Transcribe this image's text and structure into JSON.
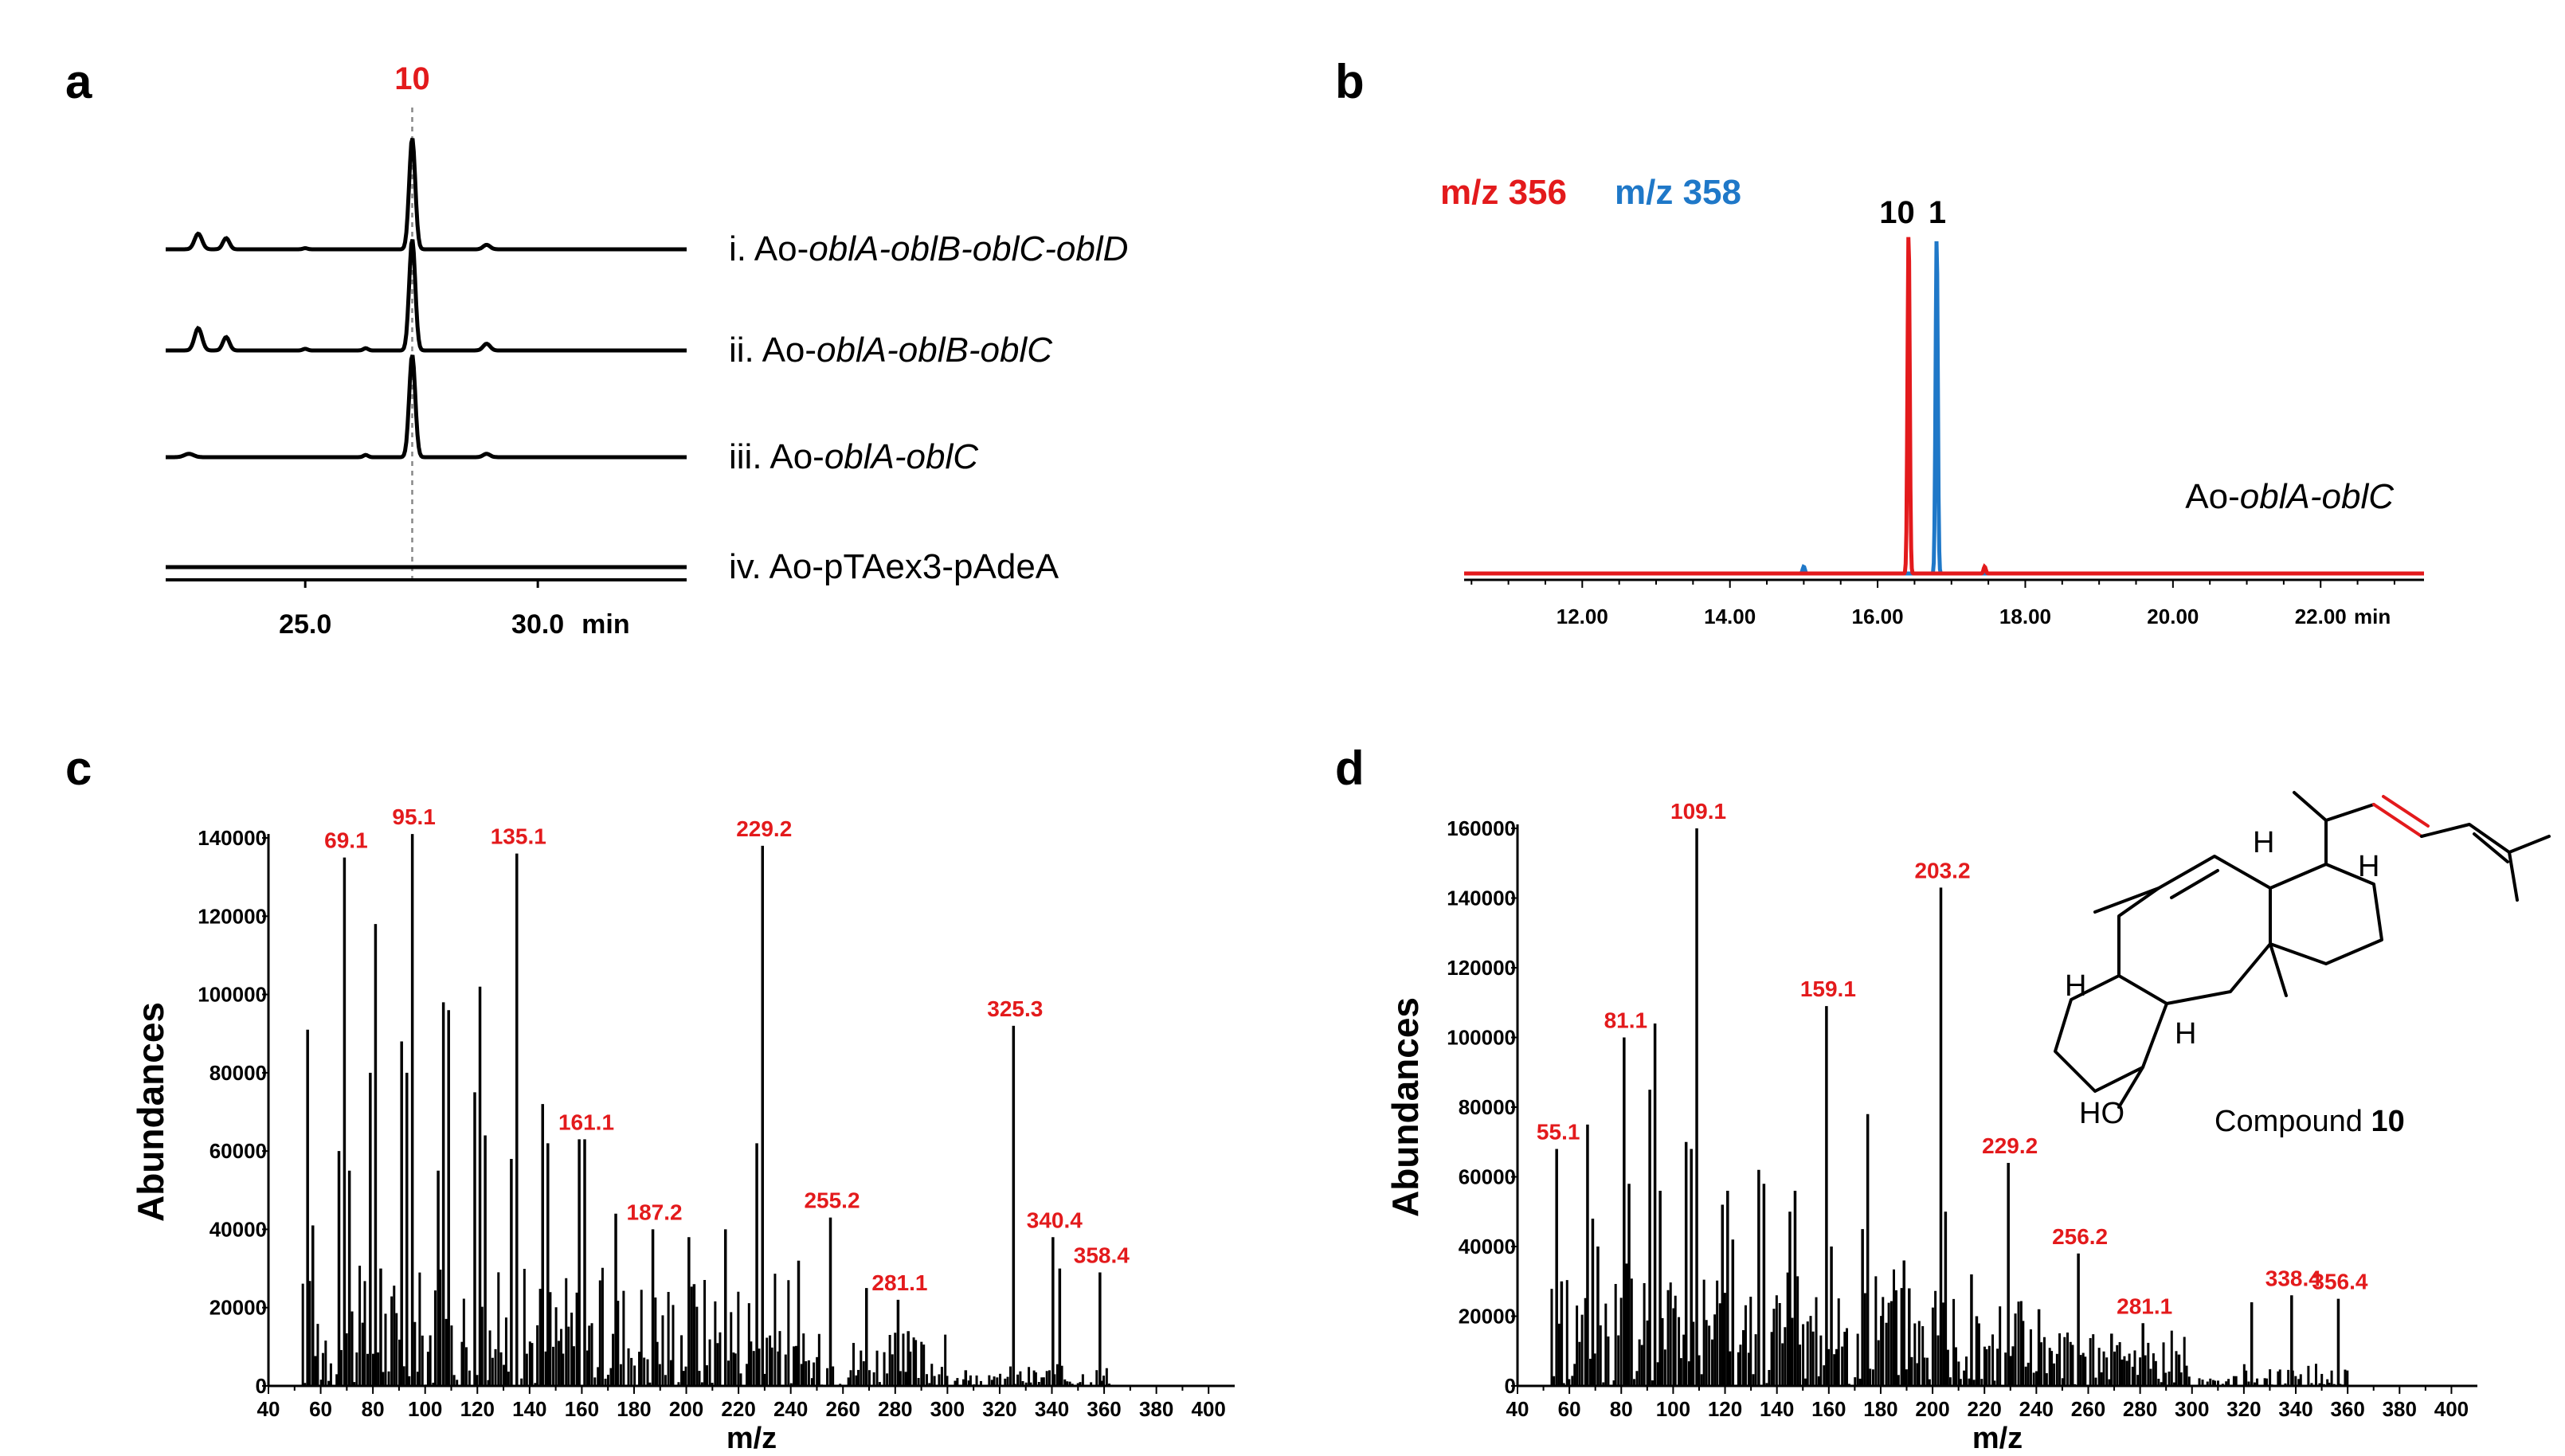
{
  "panels": {
    "a": "a",
    "b": "b",
    "c": "c",
    "d": "d"
  },
  "colors": {
    "red": "#e31a1c",
    "blue": "#1f78c8",
    "black": "#000000"
  },
  "chart_data": [
    {
      "id": "a",
      "type": "line",
      "title": "",
      "xlabel": "min",
      "xlim": [
        22.0,
        33.2
      ],
      "x_ticks": [
        {
          "value": 25.0,
          "label": "25.0"
        },
        {
          "value": 30.0,
          "label": "30.0"
        }
      ],
      "peak_marker": {
        "x": 27.3,
        "label": "10"
      },
      "traces": [
        {
          "name": "i",
          "label_prefix": "i. Ao-",
          "label_genes": "oblA-oblB-oblC-oblD",
          "peaks": [
            {
              "x": 27.3,
              "h": 1.0,
              "w": 0.13
            },
            {
              "x": 22.7,
              "h": 0.14,
              "w": 0.16
            },
            {
              "x": 23.3,
              "h": 0.1,
              "w": 0.14
            },
            {
              "x": 28.9,
              "h": 0.04,
              "w": 0.15
            },
            {
              "x": 25.0,
              "h": 0.01,
              "w": 0.1
            }
          ]
        },
        {
          "name": "ii",
          "label_prefix": "ii. Ao-",
          "label_genes": "oblA-oblB-oblC",
          "peaks": [
            {
              "x": 27.3,
              "h": 1.0,
              "w": 0.13
            },
            {
              "x": 22.7,
              "h": 0.2,
              "w": 0.16
            },
            {
              "x": 23.3,
              "h": 0.12,
              "w": 0.14
            },
            {
              "x": 28.9,
              "h": 0.06,
              "w": 0.15
            },
            {
              "x": 25.0,
              "h": 0.015,
              "w": 0.1
            },
            {
              "x": 26.3,
              "h": 0.02,
              "w": 0.1
            }
          ]
        },
        {
          "name": "iii",
          "label_prefix": "iii. Ao-",
          "label_genes": "oblA-oblC",
          "peaks": [
            {
              "x": 27.3,
              "h": 0.92,
              "w": 0.13
            },
            {
              "x": 22.5,
              "h": 0.03,
              "w": 0.2
            },
            {
              "x": 26.3,
              "h": 0.02,
              "w": 0.1
            },
            {
              "x": 28.9,
              "h": 0.03,
              "w": 0.15
            }
          ]
        },
        {
          "name": "iv",
          "label_prefix": "iv. Ao-pTAex3-pAdeA",
          "label_genes": "",
          "peaks": []
        }
      ]
    },
    {
      "id": "b",
      "type": "line",
      "title": "",
      "xlabel": "min",
      "xlim": [
        10.4,
        23.4
      ],
      "x_ticks": [
        {
          "value": 12.0,
          "label": "12.00"
        },
        {
          "value": 14.0,
          "label": "14.00"
        },
        {
          "value": 16.0,
          "label": "16.00"
        },
        {
          "value": 18.0,
          "label": "18.00"
        },
        {
          "value": 20.0,
          "label": "20.00"
        },
        {
          "value": 22.0,
          "label": "22.00"
        }
      ],
      "legend": [
        {
          "name": "m/z 356",
          "color": "#e31a1c"
        },
        {
          "name": "m/z 358",
          "color": "#1f78c8"
        }
      ],
      "peak_labels": [
        {
          "x": 16.45,
          "label": "10"
        },
        {
          "x": 16.85,
          "label": "1"
        }
      ],
      "sample_label_prefix": "Ao-",
      "sample_label_genes": "oblA-oblC",
      "series": [
        {
          "name": "m/z 356",
          "color": "#e31a1c",
          "peaks": [
            {
              "x": 16.42,
              "h": 1.0,
              "w": 0.03
            },
            {
              "x": 17.45,
              "h": 0.02,
              "w": 0.03
            }
          ]
        },
        {
          "name": "m/z 358",
          "color": "#1f78c8",
          "peaks": [
            {
              "x": 16.8,
              "h": 0.98,
              "w": 0.03
            },
            {
              "x": 15.0,
              "h": 0.02,
              "w": 0.03
            }
          ]
        }
      ]
    },
    {
      "id": "c",
      "type": "bar",
      "title": "",
      "xlabel": "m/z",
      "ylabel": "Abundances",
      "xlim": [
        40,
        410
      ],
      "ylim": [
        0,
        140000
      ],
      "x_ticks": [
        40,
        60,
        80,
        100,
        120,
        140,
        160,
        180,
        200,
        220,
        240,
        260,
        280,
        300,
        320,
        340,
        360,
        380,
        400
      ],
      "y_ticks": [
        0,
        20000,
        40000,
        60000,
        80000,
        100000,
        120000,
        140000
      ],
      "major_peaks": [
        {
          "mz": 55,
          "ab": 91000
        },
        {
          "mz": 57,
          "ab": 41000
        },
        {
          "mz": 67,
          "ab": 60000
        },
        {
          "mz": 69.1,
          "ab": 135000,
          "label": "69.1"
        },
        {
          "mz": 71,
          "ab": 55000
        },
        {
          "mz": 79,
          "ab": 80000
        },
        {
          "mz": 81,
          "ab": 118000
        },
        {
          "mz": 83,
          "ab": 30000
        },
        {
          "mz": 91,
          "ab": 88000
        },
        {
          "mz": 93,
          "ab": 80000
        },
        {
          "mz": 95.1,
          "ab": 141000,
          "label": "95.1"
        },
        {
          "mz": 105,
          "ab": 55000
        },
        {
          "mz": 107,
          "ab": 98000
        },
        {
          "mz": 109,
          "ab": 96000
        },
        {
          "mz": 119,
          "ab": 75000
        },
        {
          "mz": 121,
          "ab": 102000
        },
        {
          "mz": 123,
          "ab": 64000
        },
        {
          "mz": 133,
          "ab": 58000
        },
        {
          "mz": 135.1,
          "ab": 136000,
          "label": "135.1"
        },
        {
          "mz": 145,
          "ab": 72000
        },
        {
          "mz": 147,
          "ab": 62000
        },
        {
          "mz": 159,
          "ab": 63000
        },
        {
          "mz": 161.1,
          "ab": 63000,
          "label": "161.1"
        },
        {
          "mz": 173,
          "ab": 44000
        },
        {
          "mz": 187.2,
          "ab": 40000,
          "label": "187.2"
        },
        {
          "mz": 201,
          "ab": 38000
        },
        {
          "mz": 203,
          "ab": 26000
        },
        {
          "mz": 215,
          "ab": 40000
        },
        {
          "mz": 229.2,
          "ab": 138000,
          "label": "229.2"
        },
        {
          "mz": 227,
          "ab": 62000
        },
        {
          "mz": 243,
          "ab": 32000
        },
        {
          "mz": 255.2,
          "ab": 43000,
          "label": "255.2"
        },
        {
          "mz": 269,
          "ab": 25000
        },
        {
          "mz": 281.1,
          "ab": 22000,
          "label": "281.1"
        },
        {
          "mz": 285,
          "ab": 14000
        },
        {
          "mz": 307,
          "ab": 4000
        },
        {
          "mz": 325.3,
          "ab": 92000,
          "label": "325.3"
        },
        {
          "mz": 340.4,
          "ab": 38000,
          "label": "340.4"
        },
        {
          "mz": 343,
          "ab": 30000
        },
        {
          "mz": 358.4,
          "ab": 29000,
          "label": "358.4"
        }
      ]
    },
    {
      "id": "d",
      "type": "bar",
      "title": "",
      "xlabel": "m/z",
      "ylabel": "Abundances",
      "xlim": [
        40,
        410
      ],
      "ylim": [
        0,
        160000
      ],
      "x_ticks": [
        40,
        60,
        80,
        100,
        120,
        140,
        160,
        180,
        200,
        220,
        240,
        260,
        280,
        300,
        320,
        340,
        360,
        380,
        400
      ],
      "y_ticks": [
        0,
        20000,
        40000,
        60000,
        80000,
        100000,
        120000,
        140000,
        160000
      ],
      "major_peaks": [
        {
          "mz": 55.1,
          "ab": 68000,
          "label": "55.1"
        },
        {
          "mz": 57,
          "ab": 30000
        },
        {
          "mz": 67,
          "ab": 75000
        },
        {
          "mz": 69,
          "ab": 48000
        },
        {
          "mz": 71,
          "ab": 40000
        },
        {
          "mz": 81.1,
          "ab": 100000,
          "label": "81.1"
        },
        {
          "mz": 83,
          "ab": 58000
        },
        {
          "mz": 91,
          "ab": 85000
        },
        {
          "mz": 93,
          "ab": 104000
        },
        {
          "mz": 95,
          "ab": 56000
        },
        {
          "mz": 105,
          "ab": 70000
        },
        {
          "mz": 107,
          "ab": 68000
        },
        {
          "mz": 109.1,
          "ab": 160000,
          "label": "109.1"
        },
        {
          "mz": 119,
          "ab": 52000
        },
        {
          "mz": 121,
          "ab": 56000
        },
        {
          "mz": 123,
          "ab": 42000
        },
        {
          "mz": 133,
          "ab": 62000
        },
        {
          "mz": 135,
          "ab": 58000
        },
        {
          "mz": 145,
          "ab": 50000
        },
        {
          "mz": 147,
          "ab": 56000
        },
        {
          "mz": 159.1,
          "ab": 109000,
          "label": "159.1"
        },
        {
          "mz": 161,
          "ab": 40000
        },
        {
          "mz": 173,
          "ab": 45000
        },
        {
          "mz": 175,
          "ab": 78000
        },
        {
          "mz": 189,
          "ab": 36000
        },
        {
          "mz": 191,
          "ab": 28000
        },
        {
          "mz": 203.2,
          "ab": 143000,
          "label": "203.2"
        },
        {
          "mz": 205,
          "ab": 50000
        },
        {
          "mz": 215,
          "ab": 32000
        },
        {
          "mz": 217,
          "ab": 20000
        },
        {
          "mz": 229.2,
          "ab": 64000,
          "label": "229.2"
        },
        {
          "mz": 241,
          "ab": 22000
        },
        {
          "mz": 256.2,
          "ab": 38000,
          "label": "256.2"
        },
        {
          "mz": 269,
          "ab": 15000
        },
        {
          "mz": 281.1,
          "ab": 18000,
          "label": "281.1"
        },
        {
          "mz": 295,
          "ab": 9000
        },
        {
          "mz": 323,
          "ab": 24000
        },
        {
          "mz": 338.4,
          "ab": 26000,
          "label": "338.4"
        },
        {
          "mz": 356.4,
          "ab": 25000,
          "label": "356.4"
        }
      ],
      "structure_label_prefix": "Compound ",
      "structure_label_number": "10",
      "structure_atoms": [
        "H",
        "H",
        "H",
        "H",
        "HO"
      ]
    }
  ]
}
